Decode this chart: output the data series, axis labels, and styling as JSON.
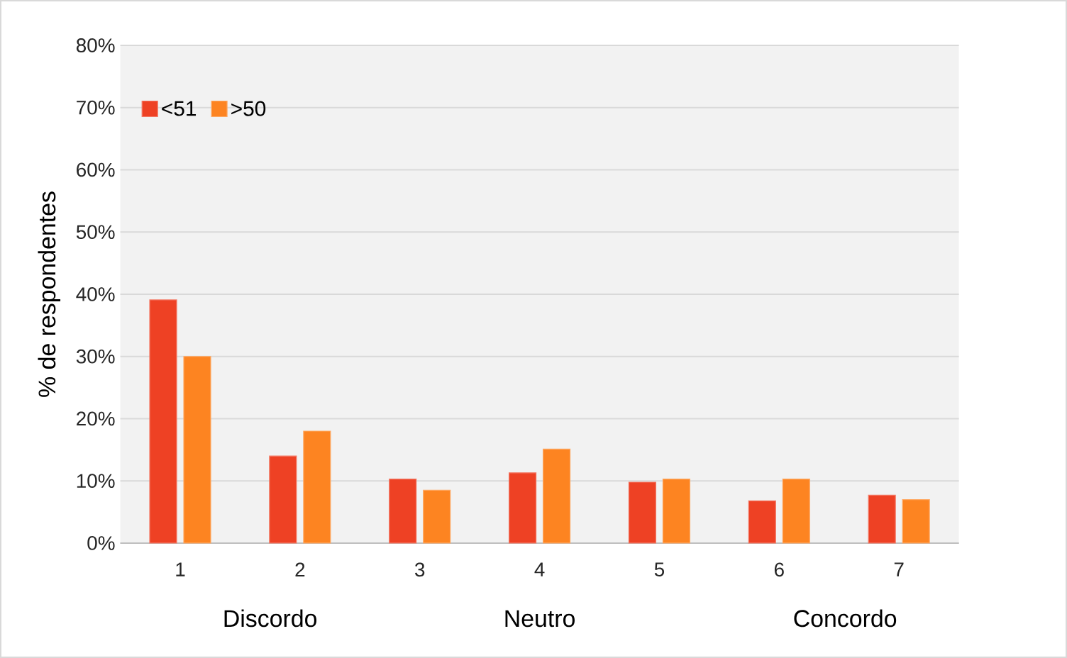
{
  "chart_data": {
    "type": "bar",
    "ylabel": "% de respondentes",
    "categories": [
      "1",
      "2",
      "3",
      "4",
      "5",
      "6",
      "7"
    ],
    "series": [
      {
        "name": "<51",
        "color": "#ee4124",
        "values": [
          39.1,
          14.0,
          10.3,
          11.3,
          9.8,
          6.8,
          7.7
        ]
      },
      {
        "name": ">50",
        "color": "#fd8421",
        "values": [
          30.0,
          18.0,
          8.5,
          15.1,
          10.3,
          10.3,
          7.0
        ]
      }
    ],
    "ylim": [
      0,
      80
    ],
    "yticks": [
      {
        "value": 0,
        "label": "0%"
      },
      {
        "value": 10,
        "label": "10%"
      },
      {
        "value": 20,
        "label": "20%"
      },
      {
        "value": 30,
        "label": "30%"
      },
      {
        "value": 40,
        "label": "40%"
      },
      {
        "value": 50,
        "label": "50%"
      },
      {
        "value": 60,
        "label": "60%"
      },
      {
        "value": 70,
        "label": "70%"
      },
      {
        "value": 80,
        "label": "80%"
      }
    ],
    "annotations": [
      "Discordo",
      "Neutro",
      "Concordo"
    ],
    "grid": "y",
    "legend": "top left"
  }
}
